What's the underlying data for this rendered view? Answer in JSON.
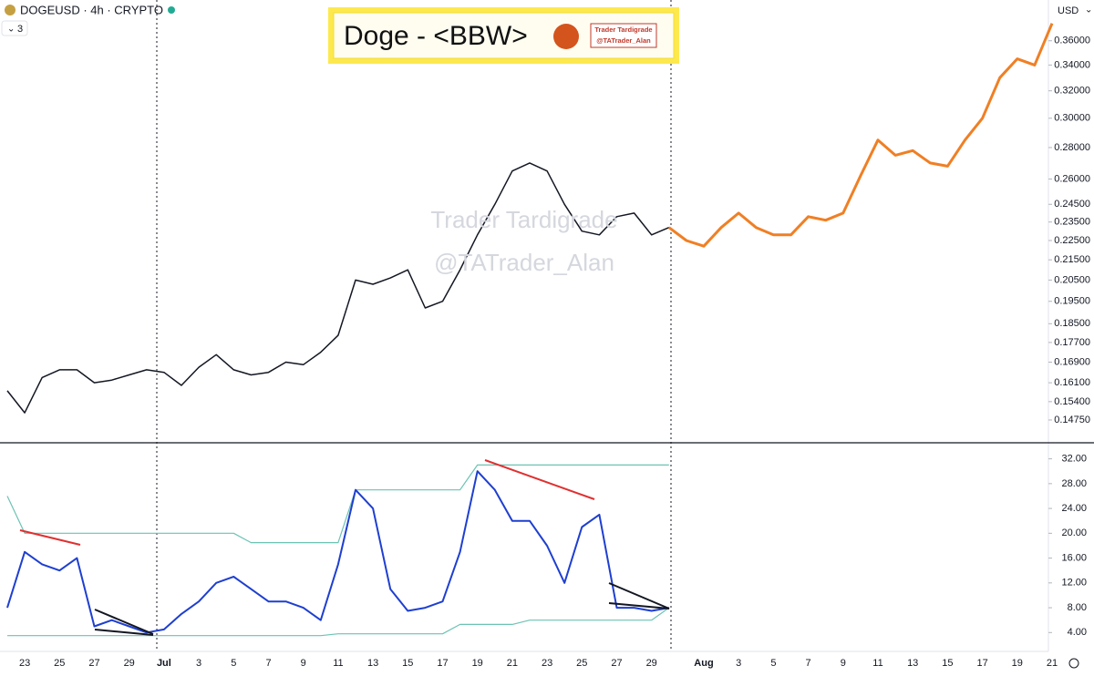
{
  "header": {
    "symbol": "DOGEUSD · 4h · CRYPTO",
    "indicator_count": "3",
    "currency": "USD"
  },
  "banner": {
    "title": "Doge - <BBW>",
    "badge_line1": "Trader Tardigrade",
    "badge_line2": "@TATrader_Alan"
  },
  "watermark": {
    "line1": "Trader Tardigrade",
    "line2": "@TATrader_Alan"
  },
  "chart_data": {
    "type": "line",
    "log_scale": true,
    "categories": [
      null,
      "23",
      null,
      "25",
      null,
      "27",
      null,
      "29",
      null,
      "Jul",
      null,
      "3",
      null,
      "5",
      null,
      "7",
      null,
      "9",
      null,
      "11",
      null,
      "13",
      null,
      "15",
      null,
      "17",
      null,
      "19",
      null,
      "21",
      null,
      "23",
      null,
      "25",
      null,
      "27",
      null,
      "29",
      null,
      null,
      "Aug",
      null,
      "3",
      null,
      "5",
      null,
      "7",
      null,
      "9",
      null,
      "11",
      null,
      "13",
      null,
      "15",
      null,
      "17",
      null,
      "19",
      null,
      "21"
    ],
    "price": {
      "color": "#131722",
      "values": [
        0.158,
        0.15,
        0.163,
        0.166,
        0.166,
        0.161,
        0.162,
        0.164,
        0.166,
        0.165,
        0.16,
        0.167,
        0.172,
        0.166,
        0.164,
        0.165,
        0.169,
        0.168,
        0.173,
        0.18,
        0.205,
        0.203,
        0.206,
        0.21,
        0.192,
        0.195,
        0.21,
        0.228,
        0.245,
        0.265,
        0.27,
        0.265,
        0.245,
        0.23,
        0.228,
        0.238,
        0.24,
        0.228,
        0.232,
        null,
        null,
        null,
        null,
        null,
        null,
        null,
        null,
        null,
        null,
        null,
        null,
        null,
        null,
        null,
        null,
        null,
        null,
        null,
        null,
        null,
        null
      ]
    },
    "projection": {
      "color": "#f07f24",
      "values": [
        null,
        null,
        null,
        null,
        null,
        null,
        null,
        null,
        null,
        null,
        null,
        null,
        null,
        null,
        null,
        null,
        null,
        null,
        null,
        null,
        null,
        null,
        null,
        null,
        null,
        null,
        null,
        null,
        null,
        null,
        null,
        null,
        null,
        null,
        null,
        null,
        null,
        null,
        0.232,
        0.225,
        0.222,
        0.232,
        0.24,
        0.232,
        0.228,
        0.228,
        0.238,
        0.236,
        0.24,
        0.262,
        0.285,
        0.275,
        0.278,
        0.27,
        0.268,
        0.285,
        0.3,
        0.33,
        0.345,
        0.34,
        0.375
      ]
    },
    "ylim": [
      0.141,
      0.392
    ],
    "yticks": [
      {
        "value": 0.36,
        "label": "0.36000"
      },
      {
        "value": 0.34,
        "label": "0.34000"
      },
      {
        "value": 0.32,
        "label": "0.32000"
      },
      {
        "value": 0.3,
        "label": "0.30000"
      },
      {
        "value": 0.28,
        "label": "0.28000"
      },
      {
        "value": 0.26,
        "label": "0.26000"
      },
      {
        "value": 0.245,
        "label": "0.24500"
      },
      {
        "value": 0.235,
        "label": "0.23500"
      },
      {
        "value": 0.225,
        "label": "0.22500"
      },
      {
        "value": 0.215,
        "label": "0.21500"
      },
      {
        "value": 0.205,
        "label": "0.20500"
      },
      {
        "value": 0.195,
        "label": "0.19500"
      },
      {
        "value": 0.185,
        "label": "0.18500"
      },
      {
        "value": 0.177,
        "label": "0.17700"
      },
      {
        "value": 0.169,
        "label": "0.16900"
      },
      {
        "value": 0.161,
        "label": "0.16100"
      },
      {
        "value": 0.154,
        "label": "0.15400"
      },
      {
        "value": 0.1475,
        "label": "0.14750"
      }
    ],
    "bbw": {
      "color": "#1e3fd0",
      "band_color": "#6cc3b4",
      "values": [
        8,
        17,
        15,
        14,
        16,
        5,
        6,
        5,
        4,
        4.5,
        7,
        9,
        12,
        13,
        11,
        9,
        9,
        8,
        6,
        15,
        27,
        24,
        11,
        7.5,
        8,
        9,
        17,
        30,
        27,
        22,
        22,
        18,
        12,
        21,
        23,
        8,
        8,
        7.5,
        8,
        null,
        null,
        null,
        null,
        null,
        null,
        null,
        null,
        null,
        null,
        null,
        null,
        null,
        null,
        null,
        null,
        null,
        null,
        null,
        null,
        null,
        null
      ],
      "upper": [
        26,
        20,
        20,
        20,
        20,
        20,
        20,
        20,
        20,
        20,
        20,
        20,
        20,
        20,
        18.5,
        18.5,
        18.5,
        18.5,
        18.5,
        18.5,
        27,
        27,
        27,
        27,
        27,
        27,
        27,
        31,
        31,
        31,
        31,
        31,
        31,
        31,
        31,
        31,
        31,
        31,
        31,
        null,
        null,
        null,
        null,
        null,
        null,
        null,
        null,
        null,
        null,
        null,
        null,
        null,
        null,
        null,
        null,
        null,
        null,
        null,
        null,
        null,
        null
      ],
      "lower": [
        3.5,
        3.5,
        3.5,
        3.5,
        3.5,
        3.5,
        3.5,
        3.5,
        3.5,
        3.5,
        3.5,
        3.5,
        3.5,
        3.5,
        3.5,
        3.5,
        3.5,
        3.5,
        3.5,
        3.8,
        3.8,
        3.8,
        3.8,
        3.8,
        3.8,
        3.8,
        5.3,
        5.3,
        5.3,
        5.3,
        6,
        6,
        6,
        6,
        6,
        6,
        6,
        6,
        8,
        null,
        null,
        null,
        null,
        null,
        null,
        null,
        null,
        null,
        null,
        null,
        null,
        null,
        null,
        null,
        null,
        null,
        null,
        null,
        null,
        null,
        null
      ]
    },
    "y2lim": [
      1.4,
      34
    ],
    "y2ticks": [
      {
        "value": 32,
        "label": "32.00"
      },
      {
        "value": 28,
        "label": "28.00"
      },
      {
        "value": 24,
        "label": "24.00"
      },
      {
        "value": 20,
        "label": "20.00"
      },
      {
        "value": 16,
        "label": "16.00"
      },
      {
        "value": 12,
        "label": "12.00"
      },
      {
        "value": 8,
        "label": "8.00"
      },
      {
        "value": 4,
        "label": "4.00"
      }
    ]
  }
}
